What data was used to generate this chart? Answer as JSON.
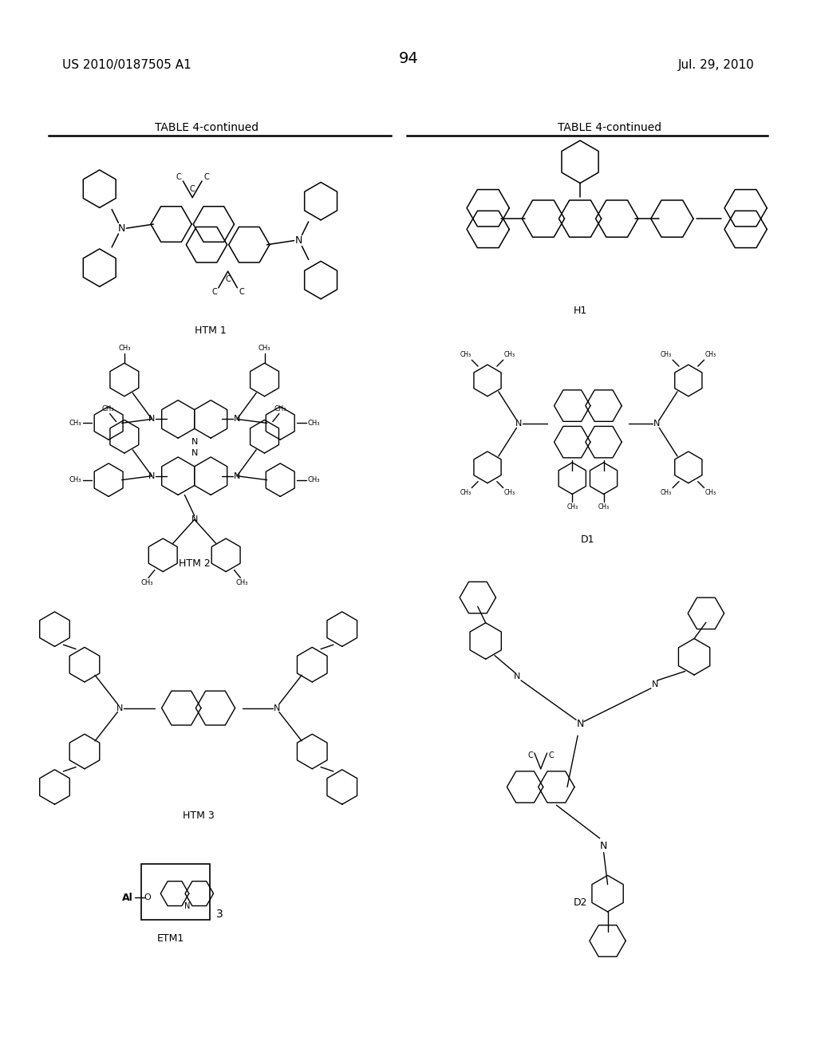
{
  "background_color": "#ffffff",
  "page_number": "94",
  "patent_number": "US 2010/0187505 A1",
  "date": "Jul. 29, 2010",
  "table_title_left": "TABLE 4-continued",
  "table_title_right": "TABLE 4-continued",
  "label_HTM1": "HTM 1",
  "label_H1": "H1",
  "label_HTM2": "HTM 2",
  "label_D1": "D1",
  "label_HTM3": "HTM 3",
  "label_ETM1": "ETM1",
  "label_D2": "D2"
}
